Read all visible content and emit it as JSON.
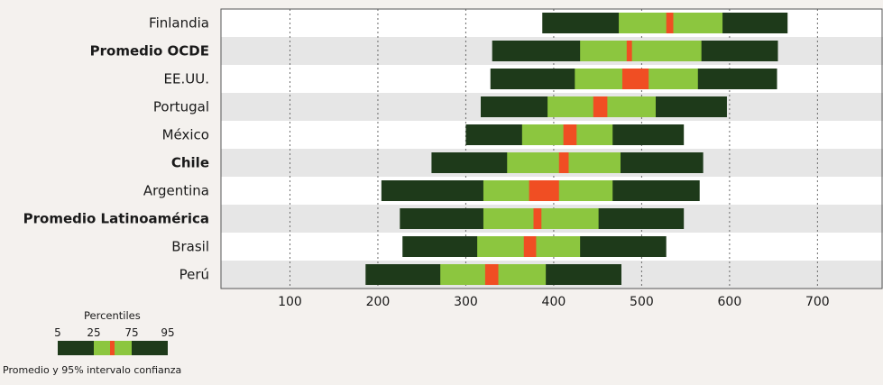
{
  "chart_data": {
    "type": "bar",
    "subtype": "percentile-range",
    "xlim": [
      0,
      760
    ],
    "x_ticks": [
      100,
      200,
      300,
      400,
      500,
      600,
      700
    ],
    "grid": "vertical dotted",
    "colors": {
      "outer_percentiles": "#1e3a1a",
      "inner_percentiles": "#8cc63f",
      "mean_ci": "#f04e23",
      "row_band": "#e6e6e6",
      "background": "#ffffff"
    },
    "categories": [
      {
        "label": "Finlandia",
        "bold": false,
        "p5": 387,
        "p25": 474,
        "ci_low": 528,
        "ci_high": 536,
        "p75": 592,
        "p95": 666
      },
      {
        "label": "Promedio OCDE",
        "bold": true,
        "p5": 330,
        "p25": 430,
        "ci_low": 483,
        "ci_high": 489,
        "p75": 568,
        "p95": 655
      },
      {
        "label": "EE.UU.",
        "bold": false,
        "p5": 328,
        "p25": 424,
        "ci_low": 478,
        "ci_high": 508,
        "p75": 564,
        "p95": 654
      },
      {
        "label": "Portugal",
        "bold": false,
        "p5": 317,
        "p25": 393,
        "ci_low": 445,
        "ci_high": 461,
        "p75": 516,
        "p95": 597
      },
      {
        "label": "México",
        "bold": false,
        "p5": 300,
        "p25": 364,
        "ci_low": 411,
        "ci_high": 426,
        "p75": 467,
        "p95": 548
      },
      {
        "label": "Chile",
        "bold": true,
        "p5": 261,
        "p25": 347,
        "ci_low": 406,
        "ci_high": 417,
        "p75": 476,
        "p95": 570
      },
      {
        "label": "Argentina",
        "bold": false,
        "p5": 204,
        "p25": 320,
        "ci_low": 372,
        "ci_high": 406,
        "p75": 467,
        "p95": 566
      },
      {
        "label": "Promedio Latinoamérica",
        "bold": true,
        "p5": 225,
        "p25": 320,
        "ci_low": 377,
        "ci_high": 386,
        "p75": 451,
        "p95": 548
      },
      {
        "label": "Brasil",
        "bold": false,
        "p5": 228,
        "p25": 313,
        "ci_low": 366,
        "ci_high": 380,
        "p75": 430,
        "p95": 528
      },
      {
        "label": "Perú",
        "bold": false,
        "p5": 186,
        "p25": 271,
        "ci_low": 322,
        "ci_high": 337,
        "p75": 391,
        "p95": 477
      }
    ],
    "legend": {
      "title": "Percentiles",
      "tick_labels": [
        "5",
        "25",
        "75",
        "95"
      ],
      "caption": "Promedio y 95% intervalo confianza",
      "placement": "bottom-left"
    }
  }
}
